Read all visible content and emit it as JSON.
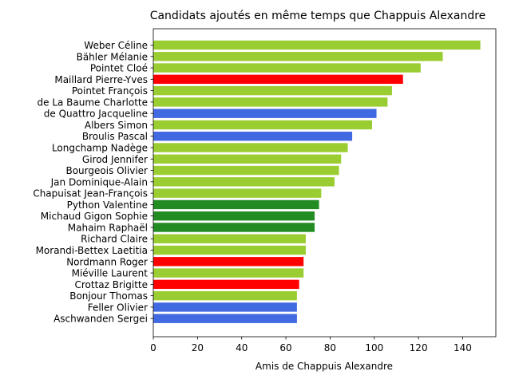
{
  "chart_data": {
    "type": "bar",
    "orientation": "horizontal",
    "title": "Candidats ajoutés en même temps que Chappuis Alexandre",
    "xlabel": "Amis de Chappuis Alexandre",
    "ylabel": "",
    "xlim": [
      0,
      155
    ],
    "xticks": [
      0,
      20,
      40,
      60,
      80,
      100,
      120,
      140
    ],
    "grid": false,
    "bars": [
      {
        "label": "Weber Céline",
        "value": 148,
        "color": "#9acd32"
      },
      {
        "label": "Bähler Mélanie",
        "value": 131,
        "color": "#9acd32"
      },
      {
        "label": "Pointet Cloé",
        "value": 121,
        "color": "#9acd32"
      },
      {
        "label": "Maillard Pierre-Yves",
        "value": 113,
        "color": "#ff0000"
      },
      {
        "label": "Pointet François",
        "value": 108,
        "color": "#9acd32"
      },
      {
        "label": "de La Baume Charlotte",
        "value": 106,
        "color": "#9acd32"
      },
      {
        "label": "de Quattro Jacqueline",
        "value": 101,
        "color": "#4169e1"
      },
      {
        "label": "Albers Simon",
        "value": 99,
        "color": "#9acd32"
      },
      {
        "label": "Broulis Pascal",
        "value": 90,
        "color": "#4169e1"
      },
      {
        "label": "Longchamp Nadège",
        "value": 88,
        "color": "#9acd32"
      },
      {
        "label": "Girod Jennifer",
        "value": 85,
        "color": "#9acd32"
      },
      {
        "label": "Bourgeois Olivier",
        "value": 84,
        "color": "#9acd32"
      },
      {
        "label": "Jan Dominique-Alain",
        "value": 82,
        "color": "#9acd32"
      },
      {
        "label": "Chapuisat Jean-François",
        "value": 76,
        "color": "#9acd32"
      },
      {
        "label": "Python Valentine",
        "value": 75,
        "color": "#228b22"
      },
      {
        "label": "Michaud Gigon Sophie",
        "value": 73,
        "color": "#228b22"
      },
      {
        "label": "Mahaim Raphaël",
        "value": 73,
        "color": "#228b22"
      },
      {
        "label": "Richard Claire",
        "value": 69,
        "color": "#9acd32"
      },
      {
        "label": "Morandi-Bettex Laetitia",
        "value": 69,
        "color": "#9acd32"
      },
      {
        "label": "Nordmann Roger",
        "value": 68,
        "color": "#ff0000"
      },
      {
        "label": "Miéville Laurent",
        "value": 68,
        "color": "#9acd32"
      },
      {
        "label": "Crottaz Brigitte",
        "value": 66,
        "color": "#ff0000"
      },
      {
        "label": "Bonjour Thomas",
        "value": 65,
        "color": "#9acd32"
      },
      {
        "label": "Feller Olivier",
        "value": 65,
        "color": "#4169e1"
      },
      {
        "label": "Aschwanden Sergei",
        "value": 65,
        "color": "#4169e1"
      }
    ]
  }
}
